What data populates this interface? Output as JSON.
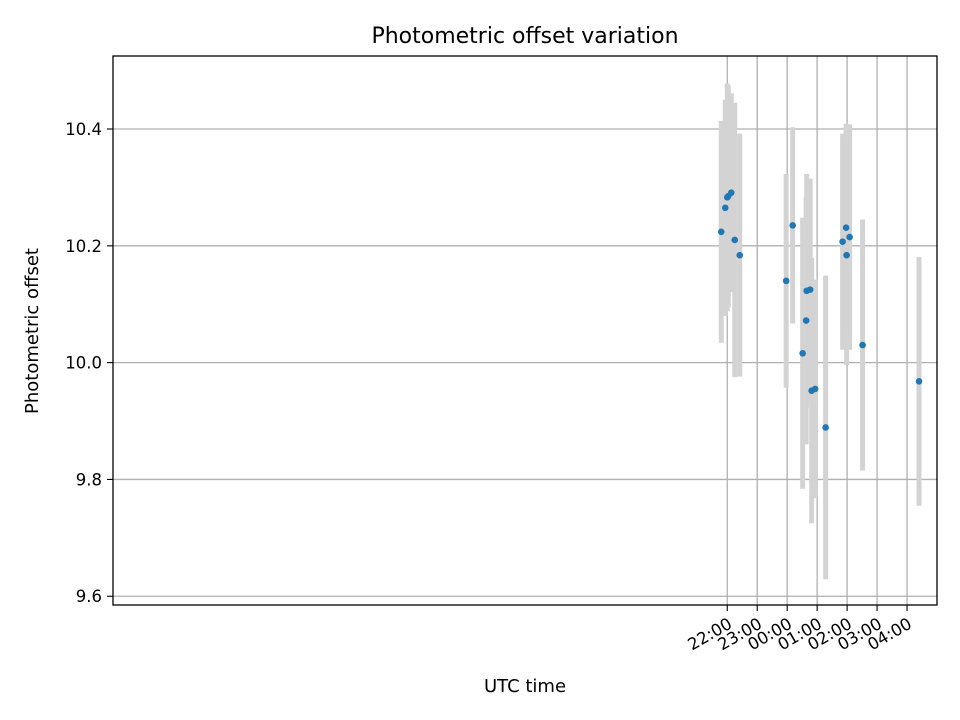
{
  "chart_data": {
    "type": "scatter",
    "title": "Photometric offset variation",
    "xlabel": "UTC time",
    "ylabel": "Photometric offset",
    "x_axis": {
      "unit": "minutes relative to 00:00 UTC",
      "lim": [
        -1350,
        300
      ],
      "ticks": [
        -120,
        -60,
        0,
        60,
        120,
        180,
        240
      ],
      "tick_labels": [
        "22:00",
        "23:00",
        "00:00",
        "01:00",
        "02:00",
        "03:00",
        "04:00"
      ],
      "tick_label_rotation": -30
    },
    "y_axis": {
      "lim": [
        9.585,
        10.525
      ],
      "ticks": [
        9.6,
        9.8,
        10.0,
        10.2,
        10.4
      ],
      "tick_labels": [
        "9.6",
        "9.8",
        "10.0",
        "10.2",
        "10.4"
      ]
    },
    "grid": true,
    "colors": {
      "point": "#1f77b4",
      "errorbar": "#d3d3d3"
    },
    "points": [
      {
        "t": "21:48",
        "y": 10.224,
        "err": 0.19
      },
      {
        "t": "21:56",
        "y": 10.265,
        "err": 0.185
      },
      {
        "t": "22:00",
        "y": 10.283,
        "err": 0.195
      },
      {
        "t": "22:02",
        "y": 10.285,
        "err": 0.19
      },
      {
        "t": "22:08",
        "y": 10.291,
        "err": 0.17
      },
      {
        "t": "22:15",
        "y": 10.21,
        "err": 0.235
      },
      {
        "t": "22:25",
        "y": 10.184,
        "err": 0.208
      },
      {
        "t": "23:58",
        "y": 10.14,
        "err": 0.183
      },
      {
        "t": "00:11",
        "y": 10.235,
        "err": 0.168
      },
      {
        "t": "00:31",
        "y": 10.016,
        "err": 0.232
      },
      {
        "t": "00:38",
        "y": 10.072,
        "err": 0.212
      },
      {
        "t": "00:39",
        "y": 10.123,
        "err": 0.2
      },
      {
        "t": "00:46",
        "y": 10.125,
        "err": 0.19
      },
      {
        "t": "00:49",
        "y": 9.952,
        "err": 0.227
      },
      {
        "t": "00:56",
        "y": 9.955,
        "err": 0.187
      },
      {
        "t": "01:17",
        "y": 9.889,
        "err": 0.26
      },
      {
        "t": "01:51",
        "y": 10.207,
        "err": 0.185
      },
      {
        "t": "01:58",
        "y": 10.231,
        "err": 0.178
      },
      {
        "t": "01:59",
        "y": 10.184,
        "err": 0.188
      },
      {
        "t": "02:05",
        "y": 10.215,
        "err": 0.193
      },
      {
        "t": "02:31",
        "y": 10.03,
        "err": 0.215
      },
      {
        "t": "04:24",
        "y": 9.968,
        "err": 0.213
      }
    ]
  }
}
